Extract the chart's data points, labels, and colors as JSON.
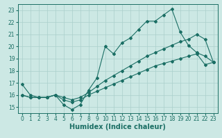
{
  "xlabel": "Humidex (Indice chaleur)",
  "xlim": [
    -0.5,
    23.5
  ],
  "ylim": [
    14.5,
    23.5
  ],
  "xticks": [
    0,
    1,
    2,
    3,
    4,
    5,
    6,
    7,
    8,
    9,
    10,
    11,
    12,
    13,
    14,
    15,
    16,
    17,
    18,
    19,
    20,
    21,
    22,
    23
  ],
  "yticks": [
    15,
    16,
    17,
    18,
    19,
    20,
    21,
    22,
    23
  ],
  "background_color": "#cce8e4",
  "grid_color": "#aacfcb",
  "line_color": "#1a6e64",
  "line1_x": [
    0,
    1,
    2,
    3,
    4,
    5,
    6,
    7,
    8,
    9,
    10,
    11,
    12,
    13,
    14,
    15,
    16,
    17,
    18,
    19,
    20,
    21,
    22,
    23
  ],
  "line1_y": [
    16.9,
    16.0,
    15.8,
    15.8,
    16.0,
    15.2,
    14.8,
    15.2,
    16.4,
    17.4,
    20.0,
    19.4,
    20.3,
    20.7,
    21.4,
    22.1,
    22.1,
    22.6,
    23.1,
    21.2,
    20.1,
    19.5,
    19.2,
    18.7
  ],
  "line2_x": [
    0,
    1,
    2,
    3,
    4,
    5,
    6,
    7,
    8,
    9,
    10,
    11,
    12,
    13,
    14,
    15,
    16,
    17,
    18,
    19,
    20,
    21,
    22,
    23
  ],
  "line2_y": [
    16.0,
    15.8,
    15.8,
    15.8,
    16.0,
    15.8,
    15.6,
    15.8,
    16.2,
    16.7,
    17.2,
    17.6,
    18.0,
    18.4,
    18.8,
    19.2,
    19.5,
    19.8,
    20.1,
    20.4,
    20.6,
    21.0,
    20.6,
    18.7
  ],
  "line3_x": [
    0,
    1,
    2,
    3,
    4,
    5,
    6,
    7,
    8,
    9,
    10,
    11,
    12,
    13,
    14,
    15,
    16,
    17,
    18,
    19,
    20,
    21,
    22,
    23
  ],
  "line3_y": [
    16.0,
    15.8,
    15.8,
    15.8,
    16.0,
    15.6,
    15.4,
    15.6,
    16.0,
    16.3,
    16.6,
    16.9,
    17.2,
    17.5,
    17.8,
    18.1,
    18.4,
    18.6,
    18.8,
    19.0,
    19.2,
    19.4,
    18.5,
    18.7
  ],
  "marker": "D",
  "markersize": 2.0,
  "linewidth": 0.8,
  "xlabel_fontsize": 7,
  "tick_fontsize": 5.5
}
